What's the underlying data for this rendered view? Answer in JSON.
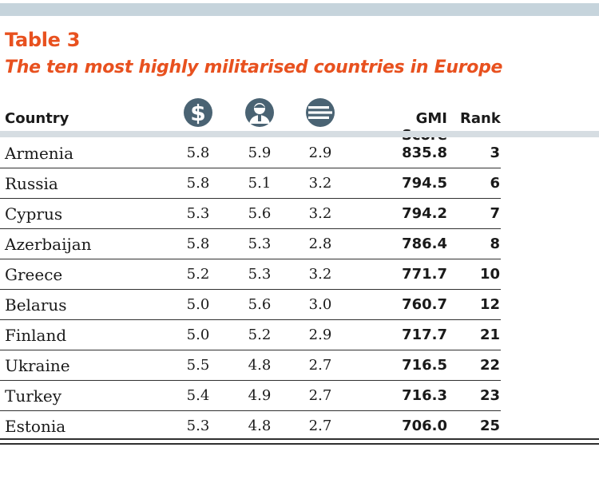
{
  "table": {
    "label": "Table 3",
    "title": "The ten most highly militarised countries in Europe",
    "headers": {
      "country": "Country",
      "gmi_score": "GMI Score",
      "rank": "Rank",
      "icon_1": "dollar-icon",
      "icon_2": "soldier-icon",
      "icon_3": "stripes-icon"
    },
    "accent_color": "#e8511f",
    "icon_color": "#4a6373",
    "rows": [
      {
        "country": "Armenia",
        "v1": "5.8",
        "v2": "5.9",
        "v3": "2.9",
        "gmi": "835.8",
        "rank": "3"
      },
      {
        "country": "Russia",
        "v1": "5.8",
        "v2": "5.1",
        "v3": "3.2",
        "gmi": "794.5",
        "rank": "6"
      },
      {
        "country": "Cyprus",
        "v1": "5.3",
        "v2": "5.6",
        "v3": "3.2",
        "gmi": "794.2",
        "rank": "7"
      },
      {
        "country": "Azerbaijan",
        "v1": "5.8",
        "v2": "5.3",
        "v3": "2.8",
        "gmi": "786.4",
        "rank": "8"
      },
      {
        "country": "Greece",
        "v1": "5.2",
        "v2": "5.3",
        "v3": "3.2",
        "gmi": "771.7",
        "rank": "10"
      },
      {
        "country": "Belarus",
        "v1": "5.0",
        "v2": "5.6",
        "v3": "3.0",
        "gmi": "760.7",
        "rank": "12"
      },
      {
        "country": "Finland",
        "v1": "5.0",
        "v2": "5.2",
        "v3": "2.9",
        "gmi": "717.7",
        "rank": "21"
      },
      {
        "country": "Ukraine",
        "v1": "5.5",
        "v2": "4.8",
        "v3": "2.7",
        "gmi": "716.5",
        "rank": "22"
      },
      {
        "country": "Turkey",
        "v1": "5.4",
        "v2": "4.9",
        "v3": "2.7",
        "gmi": "716.3",
        "rank": "23"
      },
      {
        "country": "Estonia",
        "v1": "5.3",
        "v2": "4.8",
        "v3": "2.7",
        "gmi": "706.0",
        "rank": "25"
      }
    ]
  }
}
